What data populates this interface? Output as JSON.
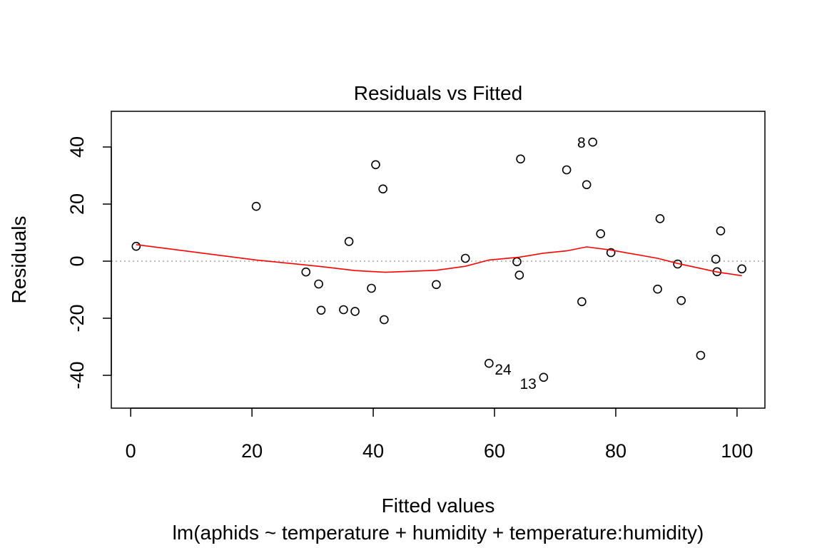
{
  "chart_data": {
    "type": "scatter",
    "title": "Residuals vs Fitted",
    "xlabel": "Fitted values",
    "subtitle": "lm(aphids ~ temperature + humidity + temperature:humidity)",
    "ylabel": "Residuals",
    "xlim": [
      -3.2,
      104.6
    ],
    "ylim": [
      -51.5,
      52.5
    ],
    "xticks": [
      0,
      20,
      40,
      60,
      80,
      100
    ],
    "yticks": [
      -40,
      -20,
      0,
      20,
      40
    ],
    "reference_line_y": 0,
    "points": [
      {
        "x": 0.9,
        "y": 5.2
      },
      {
        "x": 20.7,
        "y": 19.2
      },
      {
        "x": 28.9,
        "y": -3.8
      },
      {
        "x": 31.0,
        "y": -8.0
      },
      {
        "x": 31.4,
        "y": -17.2
      },
      {
        "x": 35.1,
        "y": -17.0
      },
      {
        "x": 36.0,
        "y": 6.9
      },
      {
        "x": 37.0,
        "y": -17.6
      },
      {
        "x": 39.7,
        "y": -9.5
      },
      {
        "x": 40.4,
        "y": 33.8
      },
      {
        "x": 41.6,
        "y": 25.3
      },
      {
        "x": 41.8,
        "y": -20.5
      },
      {
        "x": 50.4,
        "y": -8.2
      },
      {
        "x": 55.2,
        "y": 1.0
      },
      {
        "x": 59.1,
        "y": -35.8,
        "label": "24"
      },
      {
        "x": 63.7,
        "y": -0.2
      },
      {
        "x": 64.1,
        "y": -4.9
      },
      {
        "x": 64.3,
        "y": 35.8
      },
      {
        "x": 68.1,
        "y": -40.7,
        "label": "13"
      },
      {
        "x": 71.9,
        "y": 32.0
      },
      {
        "x": 74.4,
        "y": -14.2
      },
      {
        "x": 75.2,
        "y": 26.8
      },
      {
        "x": 76.2,
        "y": 41.7,
        "label": "8"
      },
      {
        "x": 77.5,
        "y": 9.6
      },
      {
        "x": 79.2,
        "y": 3.0
      },
      {
        "x": 86.9,
        "y": -9.8
      },
      {
        "x": 87.3,
        "y": 14.9
      },
      {
        "x": 90.2,
        "y": -1.0
      },
      {
        "x": 90.8,
        "y": -13.8
      },
      {
        "x": 94.0,
        "y": -33.0
      },
      {
        "x": 96.5,
        "y": 0.7
      },
      {
        "x": 96.7,
        "y": -3.7
      },
      {
        "x": 97.3,
        "y": 10.6
      },
      {
        "x": 100.8,
        "y": -2.7
      }
    ],
    "smoother": [
      {
        "x": 0.9,
        "y": 5.8
      },
      {
        "x": 20.7,
        "y": 0.4
      },
      {
        "x": 31.0,
        "y": -1.8
      },
      {
        "x": 37.0,
        "y": -3.3
      },
      {
        "x": 42.0,
        "y": -3.9
      },
      {
        "x": 50.4,
        "y": -3.2
      },
      {
        "x": 55.2,
        "y": -1.8
      },
      {
        "x": 59.1,
        "y": 0.4
      },
      {
        "x": 64.1,
        "y": 1.4
      },
      {
        "x": 68.1,
        "y": 2.8
      },
      {
        "x": 71.9,
        "y": 3.6
      },
      {
        "x": 75.2,
        "y": 5.0
      },
      {
        "x": 79.2,
        "y": 3.9
      },
      {
        "x": 86.9,
        "y": 1.0
      },
      {
        "x": 90.2,
        "y": -0.8
      },
      {
        "x": 96.7,
        "y": -3.8
      },
      {
        "x": 100.8,
        "y": -5.1
      }
    ],
    "colors": {
      "points": "#000000",
      "smoother": "#ff0000",
      "reference_line": "#bebebe"
    }
  }
}
